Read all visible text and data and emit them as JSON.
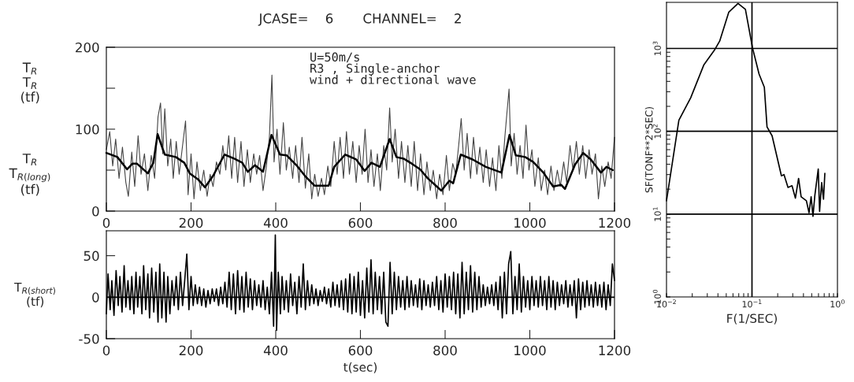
{
  "chart_data": [
    {
      "type": "line",
      "title": "JCASE=    6       CHANNEL=    2",
      "annotations": [
        "U=50m/s\nR3 , Single-anchor\nwind + directional wave",
        "T$_{R}$\nT$_{R}$\n(tf)",
        "T$_{R}$\nT$_{R(long)}$\n(tf)"
      ],
      "xlim": [
        0,
        1200
      ],
      "xticks": [
        0,
        200,
        400,
        600,
        800,
        1000,
        1200
      ],
      "ylim": [
        0,
        200
      ],
      "yticks": [
        0,
        {
          "value": 50,
          "label": null
        },
        100,
        {
          "value": 150,
          "label": null
        },
        200
      ],
      "series": [
        {
          "color": "#444444",
          "x": [
            0,
            8,
            15,
            22,
            30,
            38,
            46,
            52,
            60,
            67,
            75,
            82,
            90,
            98,
            106,
            114,
            122,
            128,
            133,
            138,
            145,
            152,
            158,
            165,
            172,
            180,
            187,
            193,
            200,
            207,
            214,
            222,
            230,
            238,
            245,
            252,
            260,
            268,
            275,
            282,
            289,
            296,
            303,
            310,
            318,
            325,
            333,
            340,
            348,
            355,
            362,
            370,
            378,
            385,
            391,
            396,
            403,
            410,
            418,
            425,
            432,
            440,
            447,
            455,
            462,
            470,
            478,
            485,
            492,
            500,
            508,
            515,
            523,
            530,
            538,
            545,
            552,
            560,
            567,
            574,
            582,
            590,
            597,
            604,
            611,
            618,
            625,
            632,
            640,
            647,
            655,
            662,
            669,
            675,
            682,
            690,
            697,
            705,
            712,
            720,
            727,
            735,
            742,
            750,
            757,
            765,
            772,
            780,
            787,
            795,
            803,
            810,
            818,
            825,
            832,
            838,
            845,
            852,
            860,
            867,
            875,
            882,
            890,
            897,
            905,
            912,
            920,
            927,
            934,
            941,
            946,
            951,
            956,
            963,
            970,
            977,
            984,
            991,
            998,
            1005,
            1012,
            1020,
            1027,
            1035,
            1042,
            1050,
            1057,
            1065,
            1072,
            1080,
            1087,
            1095,
            1102,
            1110,
            1117,
            1125,
            1132,
            1140,
            1147,
            1155,
            1162,
            1170,
            1177,
            1185,
            1192,
            1200
          ],
          "values": [
            75,
            97,
            55,
            88,
            40,
            78,
            35,
            18,
            72,
            30,
            92,
            45,
            70,
            25,
            68,
            40,
            115,
            132,
            70,
            125,
            55,
            88,
            40,
            85,
            45,
            80,
            110,
            20,
            70,
            15,
            60,
            25,
            50,
            18,
            45,
            30,
            60,
            45,
            80,
            50,
            92,
            40,
            90,
            35,
            85,
            30,
            75,
            35,
            70,
            45,
            68,
            25,
            55,
            90,
            166,
            60,
            100,
            45,
            108,
            50,
            78,
            40,
            80,
            35,
            90,
            28,
            70,
            15,
            45,
            18,
            40,
            20,
            55,
            30,
            85,
            45,
            90,
            40,
            97,
            45,
            85,
            35,
            80,
            45,
            100,
            35,
            75,
            30,
            70,
            25,
            80,
            50,
            126,
            60,
            100,
            40,
            85,
            35,
            80,
            30,
            85,
            25,
            70,
            20,
            60,
            25,
            50,
            15,
            45,
            20,
            68,
            25,
            58,
            45,
            80,
            113,
            50,
            95,
            40,
            90,
            45,
            78,
            35,
            75,
            30,
            65,
            25,
            80,
            40,
            90,
            120,
            149,
            55,
            95,
            45,
            80,
            40,
            105,
            50,
            75,
            30,
            65,
            25,
            50,
            20,
            55,
            25,
            50,
            30,
            60,
            35,
            80,
            50,
            85,
            45,
            80,
            40,
            75,
            45,
            70,
            15,
            55,
            30,
            60,
            40,
            90
          ]
        },
        {
          "color": "#000000",
          "x": [
            0,
            26,
            49,
            62,
            72,
            98,
            111,
            121,
            131,
            138,
            164,
            184,
            197,
            216,
            233,
            252,
            279,
            302,
            321,
            334,
            351,
            370,
            390,
            410,
            426,
            449,
            469,
            492,
            525,
            538,
            564,
            590,
            610,
            626,
            646,
            669,
            685,
            702,
            721,
            741,
            759,
            791,
            810,
            819,
            837,
            865,
            896,
            933,
            952,
            967,
            989,
            1008,
            1032,
            1055,
            1074,
            1083,
            1107,
            1126,
            1144,
            1168,
            1181,
            1196
          ],
          "values": [
            71,
            66,
            51,
            58,
            58,
            46,
            59,
            94,
            79,
            69,
            66,
            59,
            46,
            39,
            29,
            43,
            69,
            64,
            59,
            48,
            56,
            48,
            93,
            69,
            68,
            56,
            43,
            31,
            31,
            54,
            69,
            63,
            49,
            59,
            54,
            88,
            66,
            64,
            58,
            51,
            40,
            25,
            37,
            34,
            69,
            63,
            54,
            47,
            93,
            68,
            66,
            60,
            47,
            30,
            32,
            27,
            57,
            71,
            63,
            47,
            54,
            50
          ]
        }
      ]
    },
    {
      "type": "line",
      "xlabel": "t(sec)",
      "ylabel": "T$_{R(short)}$\n(tf)",
      "xlim": [
        0,
        1200
      ],
      "xticks": [
        0,
        200,
        400,
        600,
        800,
        1000,
        1200
      ],
      "ylim": [
        -50,
        80
      ],
      "yticks": [
        -50,
        0,
        50
      ],
      "ref_lines": [
        {
          "axis": "y",
          "value": 0,
          "color": "#000000"
        }
      ],
      "series": [
        {
          "color": "#000000",
          "x": [
            0,
            4,
            9,
            13,
            18,
            23,
            28,
            32,
            37,
            42,
            46,
            51,
            56,
            60,
            65,
            70,
            74,
            79,
            84,
            88,
            93,
            98,
            102,
            107,
            112,
            117,
            122,
            126,
            131,
            136,
            141,
            145,
            150,
            155,
            160,
            165,
            170,
            175,
            180,
            185,
            190,
            195,
            200,
            205,
            210,
            215,
            220,
            225,
            230,
            235,
            240,
            245,
            250,
            255,
            260,
            265,
            270,
            275,
            280,
            285,
            290,
            295,
            300,
            305,
            310,
            315,
            320,
            325,
            330,
            335,
            340,
            345,
            350,
            355,
            360,
            365,
            370,
            375,
            380,
            385,
            390,
            395,
            399,
            402,
            406,
            411,
            415,
            420,
            425,
            430,
            435,
            440,
            445,
            450,
            455,
            460,
            465,
            470,
            475,
            480,
            485,
            490,
            495,
            500,
            505,
            510,
            515,
            520,
            525,
            530,
            535,
            540,
            545,
            550,
            555,
            560,
            565,
            570,
            575,
            580,
            585,
            590,
            595,
            600,
            605,
            610,
            615,
            620,
            625,
            630,
            635,
            640,
            645,
            650,
            655,
            660,
            665,
            670,
            675,
            680,
            685,
            690,
            695,
            700,
            705,
            710,
            715,
            720,
            725,
            730,
            735,
            740,
            745,
            750,
            755,
            760,
            765,
            770,
            775,
            780,
            785,
            790,
            795,
            800,
            805,
            810,
            815,
            820,
            825,
            830,
            835,
            840,
            845,
            850,
            855,
            860,
            865,
            870,
            875,
            880,
            885,
            890,
            895,
            900,
            905,
            910,
            915,
            920,
            925,
            930,
            935,
            940,
            945,
            950,
            955,
            960,
            965,
            970,
            975,
            980,
            985,
            990,
            995,
            1000,
            1005,
            1010,
            1015,
            1020,
            1025,
            1030,
            1035,
            1040,
            1045,
            1050,
            1055,
            1060,
            1065,
            1070,
            1075,
            1080,
            1085,
            1090,
            1095,
            1100,
            1105,
            1110,
            1115,
            1120,
            1125,
            1130,
            1135,
            1140,
            1145,
            1150,
            1155,
            1160,
            1165,
            1170,
            1175,
            1180,
            1185,
            1190,
            1195,
            1200
          ],
          "values": [
            -20,
            28,
            -15,
            20,
            -22,
            32,
            -10,
            25,
            -18,
            38,
            -12,
            20,
            -15,
            25,
            -20,
            30,
            -12,
            25,
            -20,
            38,
            -15,
            28,
            -25,
            35,
            -18,
            30,
            -30,
            40,
            -25,
            30,
            -30,
            25,
            -20,
            20,
            -10,
            25,
            -15,
            30,
            -10,
            20,
            52,
            -15,
            25,
            -10,
            15,
            -8,
            12,
            -10,
            10,
            -12,
            8,
            -8,
            10,
            -5,
            10,
            -10,
            12,
            -8,
            18,
            -12,
            30,
            -15,
            28,
            -20,
            32,
            -15,
            25,
            -18,
            30,
            -12,
            22,
            -15,
            20,
            -10,
            15,
            -12,
            20,
            -15,
            12,
            -20,
            30,
            -35,
            75,
            -40,
            30,
            -20,
            25,
            -15,
            20,
            -18,
            28,
            -10,
            18,
            -20,
            25,
            -12,
            40,
            -15,
            20,
            -10,
            15,
            -8,
            10,
            -10,
            8,
            -5,
            12,
            -8,
            10,
            -12,
            18,
            -10,
            15,
            -12,
            20,
            -15,
            22,
            -18,
            28,
            -20,
            25,
            -18,
            30,
            -22,
            20,
            -25,
            35,
            -18,
            45,
            -20,
            30,
            -15,
            25,
            -20,
            30,
            -30,
            -35,
            42,
            -20,
            30,
            -15,
            25,
            -12,
            20,
            -15,
            25,
            -12,
            20,
            -10,
            15,
            -12,
            22,
            -15,
            20,
            -10,
            15,
            -12,
            18,
            -10,
            25,
            -15,
            20,
            -18,
            28,
            -12,
            25,
            -15,
            30,
            -20,
            28,
            -25,
            42,
            -20,
            30,
            -15,
            38,
            -18,
            30,
            -15,
            25,
            -12,
            15,
            -10,
            12,
            -8,
            15,
            -10,
            18,
            -15,
            25,
            -25,
            30,
            -20,
            40,
            55,
            -20,
            25,
            -15,
            40,
            -18,
            25,
            -12,
            20,
            -15,
            25,
            -10,
            20,
            -12,
            25,
            -10,
            20,
            -15,
            25,
            -12,
            20,
            -15,
            18,
            -10,
            15,
            -8,
            20,
            -12,
            15,
            -10,
            20,
            -25,
            22,
            -15,
            18,
            -12,
            20,
            -10,
            15,
            -12,
            18,
            -10,
            15,
            -12,
            18,
            -15,
            15,
            -10,
            40,
            20
          ]
        }
      ]
    },
    {
      "type": "line",
      "xlabel": "F(1/SEC)",
      "ylabel": "SF(TONF**2*SEC)",
      "log": "xy",
      "xlim": [
        0.01,
        1
      ],
      "xticks": [
        {
          "value": 0.01,
          "label": "10$^{−2}$"
        },
        {
          "value": 0.02,
          "label": null
        },
        {
          "value": 0.03,
          "label": null
        },
        {
          "value": 0.04,
          "label": null
        },
        {
          "value": 0.05,
          "label": null
        },
        {
          "value": 0.06,
          "label": null
        },
        {
          "value": 0.07,
          "label": null
        },
        {
          "value": 0.08,
          "label": null
        },
        {
          "value": 0.09,
          "label": null
        },
        {
          "value": 0.1,
          "label": "10$^{−1}$"
        },
        {
          "value": 0.2,
          "label": null
        },
        {
          "value": 0.3,
          "label": null
        },
        {
          "value": 0.4,
          "label": null
        },
        {
          "value": 0.5,
          "label": null
        },
        {
          "value": 0.6,
          "label": null
        },
        {
          "value": 0.7,
          "label": null
        },
        {
          "value": 0.8,
          "label": null
        },
        {
          "value": 0.9,
          "label": null
        },
        {
          "value": 1,
          "label": "10$^{0}$"
        }
      ],
      "ylim": [
        1,
        3600
      ],
      "yticks": [
        {
          "value": 1,
          "label": "10$^{0}$"
        },
        {
          "value": 2,
          "label": null
        },
        {
          "value": 3,
          "label": null
        },
        {
          "value": 4,
          "label": null
        },
        {
          "value": 5,
          "label": null
        },
        {
          "value": 6,
          "label": null
        },
        {
          "value": 7,
          "label": null
        },
        {
          "value": 8,
          "label": null
        },
        {
          "value": 9,
          "label": null
        },
        {
          "value": 10,
          "label": "10$^{1}$"
        },
        {
          "value": 20,
          "label": null
        },
        {
          "value": 30,
          "label": null
        },
        {
          "value": 40,
          "label": null
        },
        {
          "value": 50,
          "label": null
        },
        {
          "value": 60,
          "label": null
        },
        {
          "value": 70,
          "label": null
        },
        {
          "value": 80,
          "label": null
        },
        {
          "value": 90,
          "label": null
        },
        {
          "value": 100,
          "label": "10$^{2}$"
        },
        {
          "value": 200,
          "label": null
        },
        {
          "value": 300,
          "label": null
        },
        {
          "value": 400,
          "label": null
        },
        {
          "value": 500,
          "label": null
        },
        {
          "value": 600,
          "label": null
        },
        {
          "value": 700,
          "label": null
        },
        {
          "value": 800,
          "label": null
        },
        {
          "value": 900,
          "label": null
        },
        {
          "value": 1000,
          "label": "10$^{3}$"
        }
      ],
      "ref_lines": [
        {
          "axis": "x",
          "value": 0.1,
          "color": "#000000"
        },
        {
          "axis": "y",
          "value": 10,
          "color": "#000000"
        },
        {
          "axis": "y",
          "value": 100,
          "color": "#000000"
        },
        {
          "axis": "y",
          "value": 1000,
          "color": "#000000"
        }
      ],
      "series": [
        {
          "color": "#000000",
          "x": [
            0.01,
            0.01396,
            0.0192,
            0.0274,
            0.0363,
            0.0419,
            0.0536,
            0.0687,
            0.0838,
            0.1014,
            0.121,
            0.1395,
            0.15,
            0.172,
            0.221,
            0.237,
            0.264,
            0.294,
            0.322,
            0.351,
            0.376,
            0.433,
            0.465,
            0.492,
            0.517,
            0.544,
            0.596,
            0.618,
            0.653,
            0.687,
            0.712
          ],
          "values": [
            14.5,
            136,
            254,
            636,
            950,
            1227,
            2750,
            3500,
            2960,
            1020,
            491,
            340,
            113,
            88,
            29,
            30,
            21,
            22,
            15.6,
            27,
            16.2,
            14.5,
            10.4,
            16.2,
            9.4,
            16.8,
            35,
            10.8,
            24,
            15.1,
            31
          ]
        }
      ]
    }
  ]
}
